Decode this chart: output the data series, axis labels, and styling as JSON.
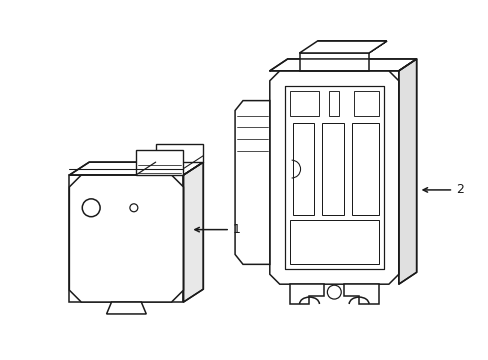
{
  "background_color": "#ffffff",
  "line_color": "#1a1a1a",
  "line_width": 1.1,
  "figure_width": 4.89,
  "figure_height": 3.6,
  "dpi": 100,
  "label1": "1",
  "label2": "2"
}
